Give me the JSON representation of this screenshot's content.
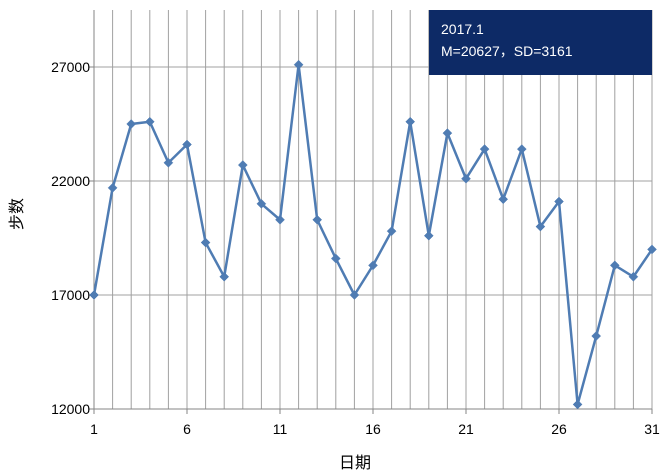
{
  "chart_data": {
    "type": "line",
    "title": "",
    "xlabel": "日期",
    "ylabel": "步数",
    "x": [
      1,
      2,
      3,
      4,
      5,
      6,
      7,
      8,
      9,
      10,
      11,
      12,
      13,
      14,
      15,
      16,
      17,
      18,
      19,
      20,
      21,
      22,
      23,
      24,
      25,
      26,
      27,
      28,
      29,
      30,
      31
    ],
    "series": [
      {
        "name": "",
        "values": [
          17000,
          21700,
          24500,
          24600,
          22800,
          23600,
          19300,
          17800,
          22700,
          21000,
          20300,
          27100,
          20300,
          18600,
          17000,
          18300,
          19800,
          24600,
          19600,
          24100,
          22100,
          23400,
          21200,
          23400,
          20000,
          21100,
          12200,
          15200,
          18300,
          17800,
          19000
        ]
      }
    ],
    "xlim": [
      1,
      31
    ],
    "ylim": [
      12000,
      29500
    ],
    "xticks": [
      1,
      6,
      11,
      16,
      21,
      26,
      31
    ],
    "yticks": [
      12000,
      17000,
      22000,
      27000
    ],
    "xtick_labels": [
      "1",
      "6",
      "11",
      "16",
      "21",
      "26",
      "31"
    ],
    "ytick_labels": [
      "12000",
      "17000",
      "22000",
      "27000"
    ],
    "grid": {
      "vertical": true,
      "horizontal": true
    },
    "legend": "none",
    "annotation": {
      "line1": "2017.1",
      "line2": "M=20627，SD=3161",
      "position": "top-right"
    },
    "colors": {
      "line": "#4f7cb3",
      "marker": "#4f7cb3",
      "grid": "#a0a0a0",
      "axis": "#868686",
      "annotation_bg": "#0d2a66",
      "annotation_text": "#ffffff"
    }
  }
}
